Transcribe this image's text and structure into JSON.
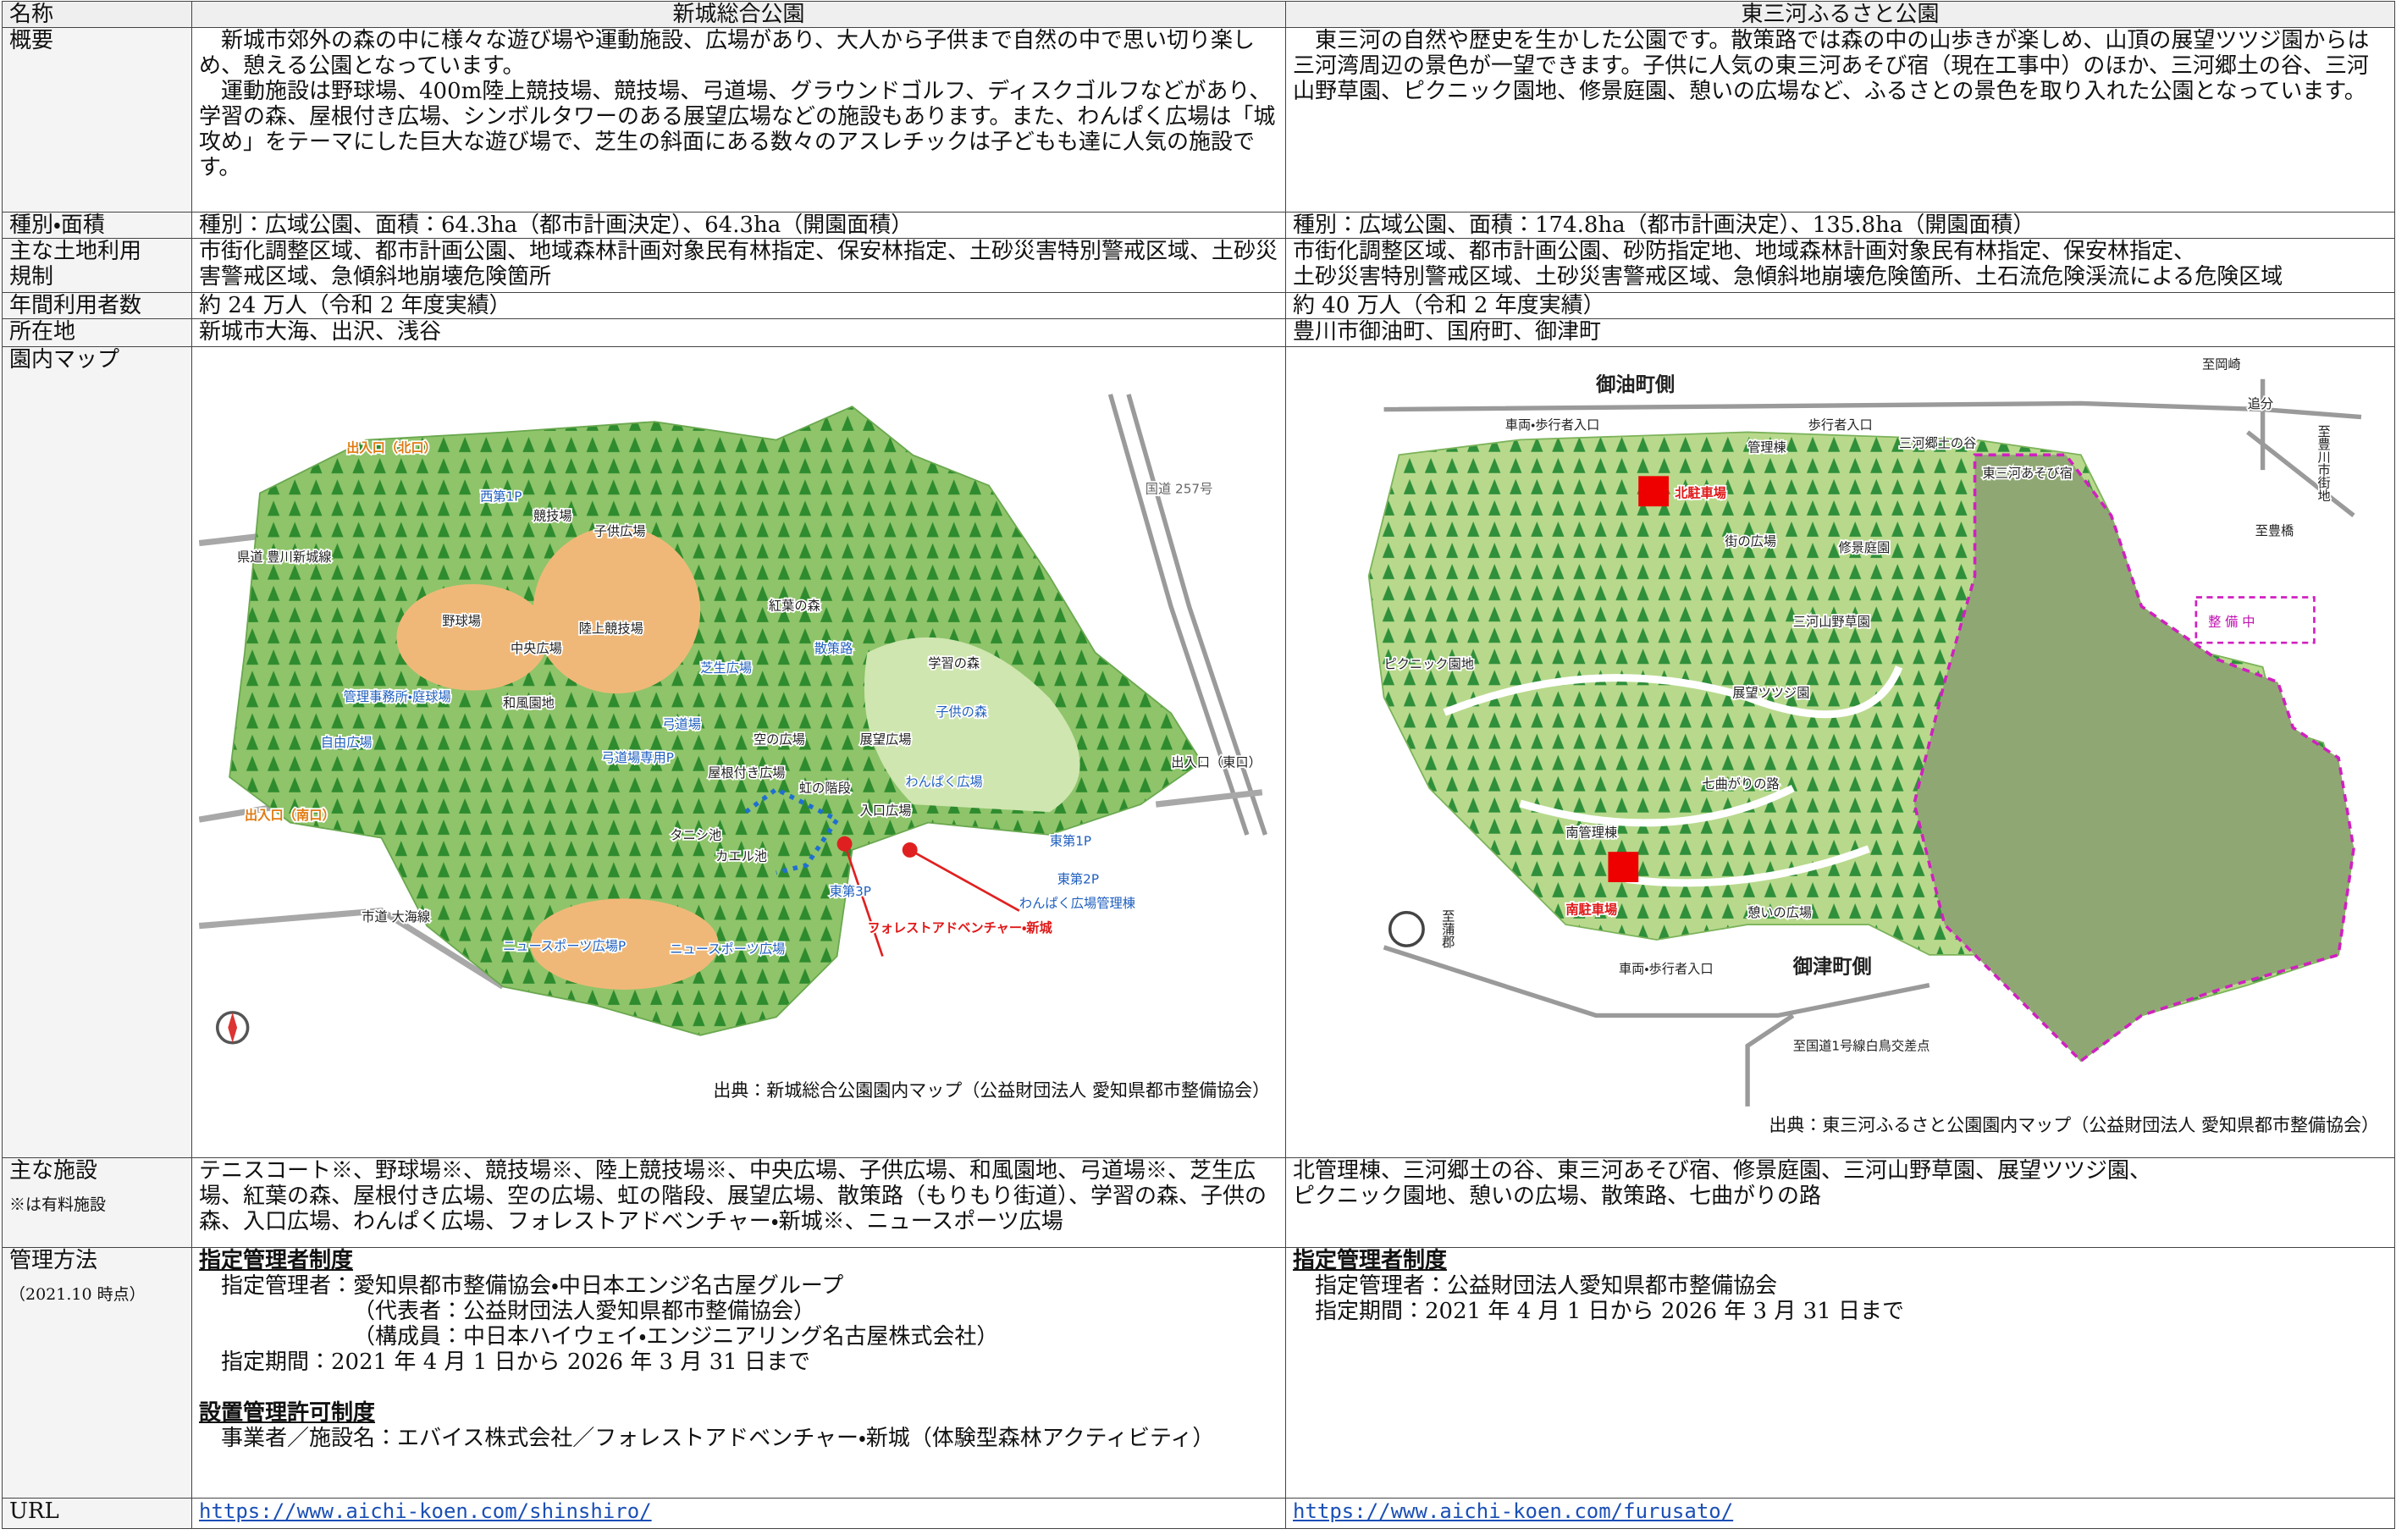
{
  "table": {
    "header": {
      "label": "名称",
      "left": "新城総合公園",
      "right": "東三河ふるさと公園"
    },
    "overview": {
      "label": "概要",
      "left": [
        "新城市郊外の森の中に様々な遊び場や運動施設、広場があり、大人から子供まで自然の中で思い切り楽しめ、憩える公園となっています。",
        "運動施設は野球場、400m陸上競技場、競技場、弓道場、グラウンドゴルフ、ディスクゴルフなどがあり、学習の森、屋根付き広場、シンボルタワーのある展望広場などの施設もあります。また、わんぱく広場は「城攻め」をテーマにした巨大な遊び場で、芝生の斜面にある数々のアスレチックは子どもも達に人気の施設です。"
      ],
      "right": [
        "東三河の自然や歴史を生かした公園です。散策路では森の中の山歩きが楽しめ、山頂の展望ツツジ園からは三河湾周辺の景色が一望できます。子供に人気の東三河あそび宿（現在工事中）のほか、三河郷土の谷、三河山野草園、ピクニック園地、修景庭園、憩いの広場など、ふるさとの景色を取り入れた公園となっています。"
      ]
    },
    "area": {
      "label": "種別・面積",
      "left": "種別：広域公園、面積：64.3ha（都市計画決定）、64.3ha（開園面積）",
      "right": "種別：広域公園、面積：174.8ha（都市計画決定）、135.8ha（開園面積）"
    },
    "land_use": {
      "label": "主な土地利用規制",
      "left": [
        "市街化調整区域、都市計画公園、地域森林計画対象民有林指定、保安林指定、土砂災害特別警戒区域、土砂災害警戒区域、急傾斜地崩壊危険箇所"
      ],
      "right": [
        "市街化調整区域、都市計画公園、砂防指定地、地域森林計画対象民有林指定、保安林指定、",
        "土砂災害特別警戒区域、土砂災害警戒区域、急傾斜地崩壊危険箇所、土石流危険渓流による危険区域"
      ]
    },
    "visitors": {
      "label": "年間利用者数",
      "left": "約 24 万人（令和 2 年度実績）",
      "right": "約 40 万人（令和 2 年度実績）"
    },
    "location": {
      "label": "所在地",
      "left": "新城市大海、出沢、浅谷",
      "right": "豊川市御油町、国府町、御津町"
    },
    "map": {
      "label": "園内マップ",
      "left": {
        "labels": [
          "出入口（北口）",
          "西第1P",
          "競技場",
          "子供広場",
          "県道 豊川新城線",
          "国道 257号",
          "野球場",
          "陸上競技場",
          "中央広場",
          "紅葉の森",
          "散策路",
          "学習の森",
          "芝生広場",
          "子供の森",
          "自由広場",
          "空の広場",
          "展望広場",
          "わんぱく広場",
          "出入口（東口）",
          "屋根付き広場",
          "虹の階段",
          "入口広場",
          "出入口（南口）",
          "タニシ池",
          "カエル池",
          "東第1P",
          "東第2P",
          "東第3P",
          "わんぱく広場管理棟",
          "フォレストアドベンチャー・新城",
          "市道 大海線",
          "ニュースポーツ広場P",
          "ニュースポーツ広場",
          "弓道場",
          "弓道場専用P",
          "和風園地",
          "管理事務所・庭球場"
        ],
        "source": "出典：新城総合公園園内マップ（公益財団法人 愛知県都市整備協会）"
      },
      "right": {
        "labels": [
          "御油町側",
          "至岡崎",
          "追分",
          "至豊川市街地",
          "至豊橋",
          "車両・歩行者入口",
          "歩行者入口",
          "三河郷土の谷",
          "管理棟",
          "東三河あそび宿",
          "北駐車場",
          "街の広場",
          "修景庭園",
          "三河山野草園",
          "整 備 中",
          "ピクニック園地",
          "展望ツツジ園",
          "七曲がりの路",
          "南管理棟",
          "南駐車場",
          "憩いの広場",
          "御津町側",
          "車両・歩行者入口",
          "至蒲郡",
          "至国道1号線白鳥交差点"
        ],
        "source": "出典：東三河ふるさと公園園内マップ（公益財団法人 愛知県都市整備協会）"
      }
    },
    "facilities": {
      "label": "主な施設",
      "note": "※は有料施設",
      "left": [
        "テニスコート※、野球場※、競技場※、陸上競技場※、中央広場、子供広場、和風園地、弓道場※、芝生広場、紅葉の森、屋根付き広場、空の広場、虹の階段、展望広場、散策路（もりもり街道）、学習の森、子供の森、入口広場、わんぱく広場、フォレストアドベンチャー・新城※、ニュースポーツ広場"
      ],
      "right": [
        "北管理棟、三河郷土の谷、東三河あそび宿、修景庭園、三河山野草園、展望ツツジ園、",
        "ピクニック園地、憩いの広場、散策路、七曲がりの路"
      ]
    },
    "management": {
      "label": "管理方法",
      "note": "（2021.10 時点）",
      "left": {
        "heading1": "指定管理者制度",
        "lines1": [
          "指定管理者：愛知県都市整備協会・中日本エンジ名古屋グループ",
          "（代表者：公益財団法人愛知県都市整備協会）",
          "（構成員：中日本ハイウェイ・エンジニアリング名古屋株式会社）",
          "指定期間：2021 年 4 月 1 日から 2026 年 3 月 31 日まで"
        ],
        "heading2": "設置管理許可制度",
        "lines2": [
          "事業者／施設名：エバイス株式会社／フォレストアドベンチャー・新城（体験型森林アクティビティ）"
        ]
      },
      "right": {
        "heading1": "指定管理者制度",
        "lines1": [
          "指定管理者：公益財団法人愛知県都市整備協会",
          "指定期間：2021 年 4 月 1 日から 2026 年 3 月 31 日まで"
        ]
      }
    },
    "url": {
      "label": "URL",
      "left": "https://www.aichi-koen.com/shinshiro/",
      "right": "https://www.aichi-koen.com/furusato/"
    }
  }
}
